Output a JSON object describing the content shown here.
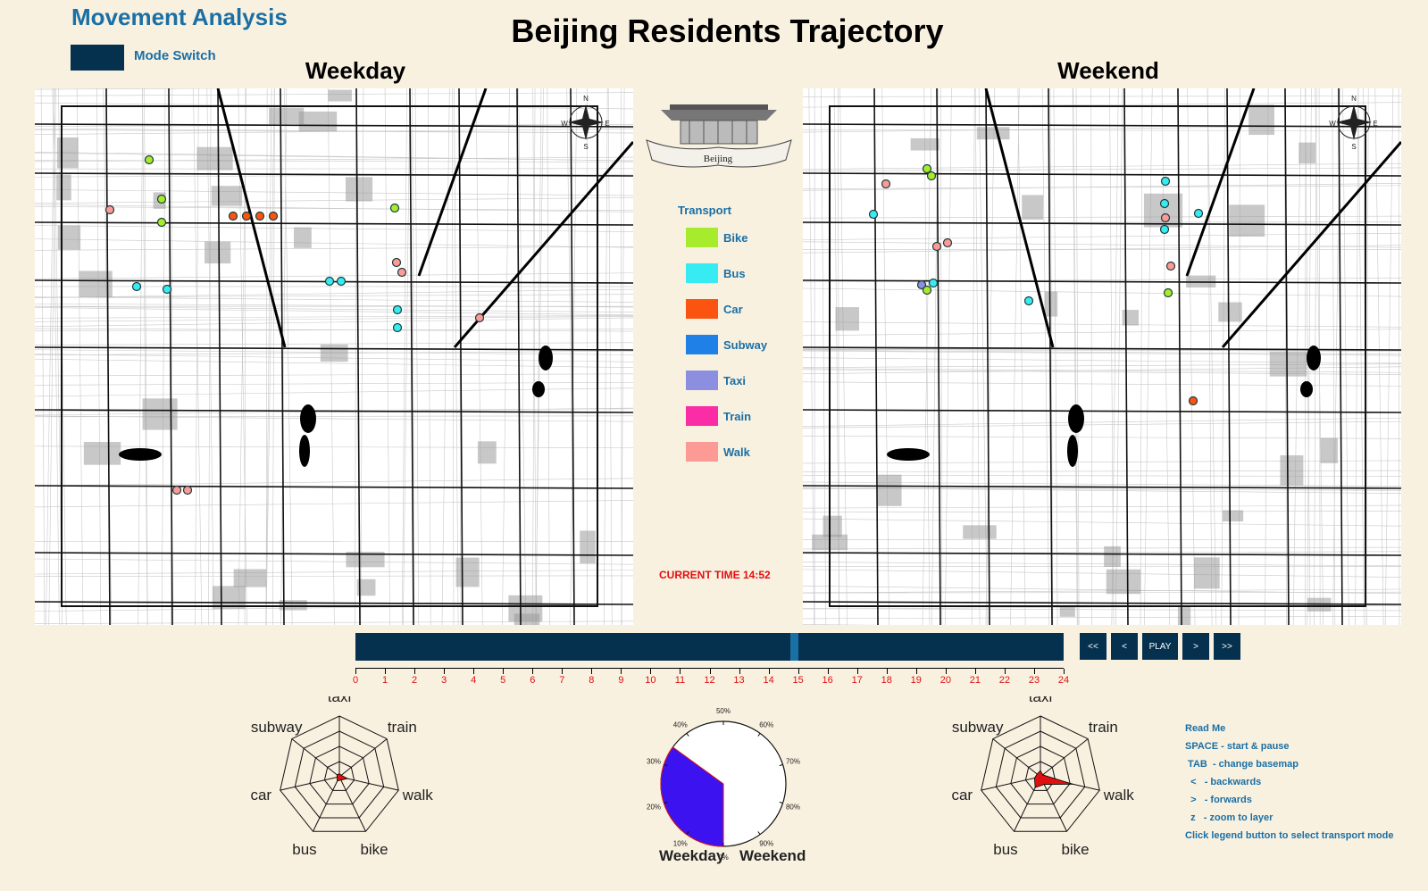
{
  "app": {
    "title": "Movement Analysis",
    "mode_switch_label": "Mode Switch",
    "main_title": "Beijing Residents Trajectory"
  },
  "maps": {
    "weekday_title": "Weekday",
    "weekend_title": "Weekend",
    "emblem_text": "Beijing",
    "compass": {
      "n": "N",
      "s": "S",
      "e": "E",
      "w": "W"
    }
  },
  "legend": {
    "title": "Transport",
    "items": [
      {
        "label": "Bike",
        "color": "#a6ec2c"
      },
      {
        "label": "Bus",
        "color": "#36ecf2"
      },
      {
        "label": "Car",
        "color": "#fa5410"
      },
      {
        "label": "Subway",
        "color": "#1f80e8"
      },
      {
        "label": "Taxi",
        "color": "#8c8ee0"
      },
      {
        "label": "Train",
        "color": "#fa2ca6"
      },
      {
        "label": "Walk",
        "color": "#fc9a96"
      }
    ]
  },
  "current_time": "CURRENT TIME  14:52",
  "timeline": {
    "position_hours": 14.87,
    "ticks": [
      "0",
      "1",
      "2",
      "3",
      "4",
      "5",
      "6",
      "7",
      "8",
      "9",
      "10",
      "11",
      "12",
      "13",
      "14",
      "15",
      "16",
      "17",
      "18",
      "19",
      "20",
      "21",
      "22",
      "23",
      "24"
    ]
  },
  "controls": {
    "first": "<<",
    "prev": "<",
    "play": "PLAY",
    "next": ">",
    "last": ">>"
  },
  "radar": {
    "axes": [
      "taxi",
      "train",
      "walk",
      "bike",
      "bus",
      "car",
      "subway"
    ],
    "weekday_values": [
      0.05,
      0.04,
      0.14,
      0.06,
      0.08,
      0.04,
      0.05
    ],
    "weekend_values": [
      0.1,
      0.05,
      0.55,
      0.14,
      0.2,
      0.1,
      0.07
    ]
  },
  "pie": {
    "tick_labels": [
      "0%",
      "10%",
      "20%",
      "30%",
      "40%",
      "50%",
      "60%",
      "70%",
      "80%",
      "90%"
    ],
    "weekday_share": 0.35,
    "weekday_color": "#3c12f0",
    "weekday_label": "Weekday",
    "weekend_label": "Weekend"
  },
  "readme": {
    "title": "Read Me",
    "lines": [
      "SPACE - start & pause",
      " TAB  - change basemap",
      "  <   - backwards",
      "  >   - forwards",
      "  z   - zoom to layer",
      "Click legend button to select transport mode"
    ]
  }
}
